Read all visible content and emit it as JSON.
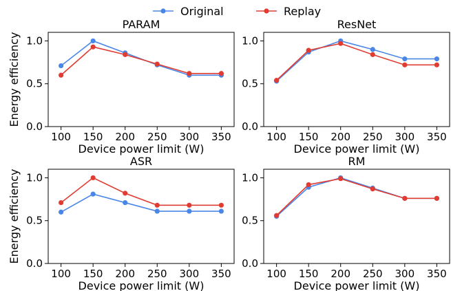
{
  "legend": {
    "placement": "top-center",
    "entries": [
      {
        "name": "Original",
        "color": "#4a86e8"
      },
      {
        "name": "Replay",
        "color": "#e03c31"
      }
    ]
  },
  "chart_data": [
    {
      "type": "line",
      "title": "PARAM",
      "xlabel": "Device power limit (W)",
      "ylabel": "Energy efficiency",
      "x": [
        100,
        150,
        200,
        250,
        300,
        350
      ],
      "xticks": [
        "100",
        "150",
        "200",
        "250",
        "300",
        "350"
      ],
      "yticks": [
        "0.0",
        "0.5",
        "1.0"
      ],
      "ylim": [
        0,
        1.1
      ],
      "grid": false,
      "series": [
        {
          "name": "Original",
          "color": "#4a86e8",
          "values": [
            0.71,
            1.0,
            0.86,
            0.72,
            0.6,
            0.6
          ]
        },
        {
          "name": "Replay",
          "color": "#e03c31",
          "values": [
            0.6,
            0.93,
            0.84,
            0.73,
            0.62,
            0.62
          ]
        }
      ]
    },
    {
      "type": "line",
      "title": "ResNet",
      "xlabel": "Device power limit (W)",
      "ylabel": "",
      "x": [
        100,
        150,
        200,
        250,
        300,
        350
      ],
      "xticks": [
        "100",
        "150",
        "200",
        "250",
        "300",
        "350"
      ],
      "yticks": [
        "0.0",
        "0.5",
        "1.0"
      ],
      "ylim": [
        0,
        1.1
      ],
      "grid": false,
      "series": [
        {
          "name": "Original",
          "color": "#4a86e8",
          "values": [
            0.53,
            0.87,
            1.0,
            0.9,
            0.79,
            0.79
          ]
        },
        {
          "name": "Replay",
          "color": "#e03c31",
          "values": [
            0.54,
            0.89,
            0.97,
            0.84,
            0.72,
            0.72
          ]
        }
      ]
    },
    {
      "type": "line",
      "title": "ASR",
      "xlabel": "Device power limit (W)",
      "ylabel": "Energy efficiency",
      "x": [
        100,
        150,
        200,
        250,
        300,
        350
      ],
      "xticks": [
        "100",
        "150",
        "200",
        "250",
        "300",
        "350"
      ],
      "yticks": [
        "0.0",
        "0.5",
        "1.0"
      ],
      "ylim": [
        0,
        1.1
      ],
      "grid": false,
      "series": [
        {
          "name": "Original",
          "color": "#4a86e8",
          "values": [
            0.6,
            0.81,
            0.71,
            0.61,
            0.61,
            0.61
          ]
        },
        {
          "name": "Replay",
          "color": "#e03c31",
          "values": [
            0.71,
            1.0,
            0.82,
            0.68,
            0.68,
            0.68
          ]
        }
      ]
    },
    {
      "type": "line",
      "title": "RM",
      "xlabel": "Device power limit (W)",
      "ylabel": "",
      "x": [
        100,
        150,
        200,
        250,
        300,
        350
      ],
      "xticks": [
        "100",
        "150",
        "200",
        "250",
        "300",
        "350"
      ],
      "yticks": [
        "0.0",
        "0.5",
        "1.0"
      ],
      "ylim": [
        0,
        1.1
      ],
      "grid": false,
      "series": [
        {
          "name": "Original",
          "color": "#4a86e8",
          "values": [
            0.55,
            0.89,
            1.0,
            0.88,
            0.76,
            0.76
          ]
        },
        {
          "name": "Replay",
          "color": "#e03c31",
          "values": [
            0.56,
            0.92,
            0.99,
            0.87,
            0.76,
            0.76
          ]
        }
      ]
    }
  ]
}
